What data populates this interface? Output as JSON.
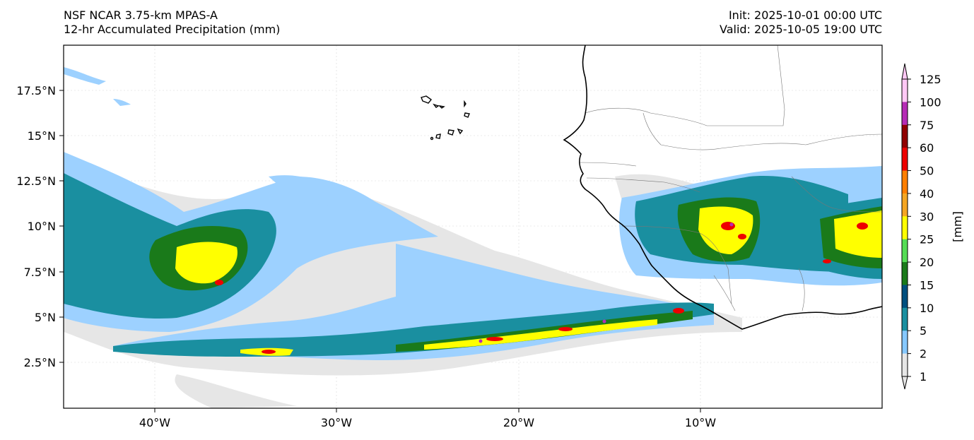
{
  "header": {
    "model": "NSF NCAR 3.75-km MPAS-A",
    "field": "12-hr Accumulated Precipitation (mm)",
    "init": "Init: 2025-10-01 00:00 UTC",
    "valid": "Valid: 2025-10-05 19:00 UTC"
  },
  "map": {
    "lat_ticks": [
      "17.5°N",
      "15°N",
      "12.5°N",
      "10°N",
      "7.5°N",
      "5°N",
      "2.5°N"
    ],
    "lon_ticks": [
      "40°W",
      "30°W",
      "20°W",
      "10°W"
    ]
  },
  "colorbar": {
    "label": "[mm]",
    "ticks": [
      "125",
      "100",
      "75",
      "60",
      "50",
      "40",
      "30",
      "25",
      "20",
      "15",
      "10",
      "5",
      "2",
      "1"
    ],
    "colors": [
      "#ffc8f5",
      "#b52cb5",
      "#900000",
      "#ee0000",
      "#ff7f00",
      "#f5a623",
      "#ffff00",
      "#55dd55",
      "#1a7a1a",
      "#004f7f",
      "#1a8fa0",
      "#86c8ff",
      "#e6e6e6"
    ]
  }
}
